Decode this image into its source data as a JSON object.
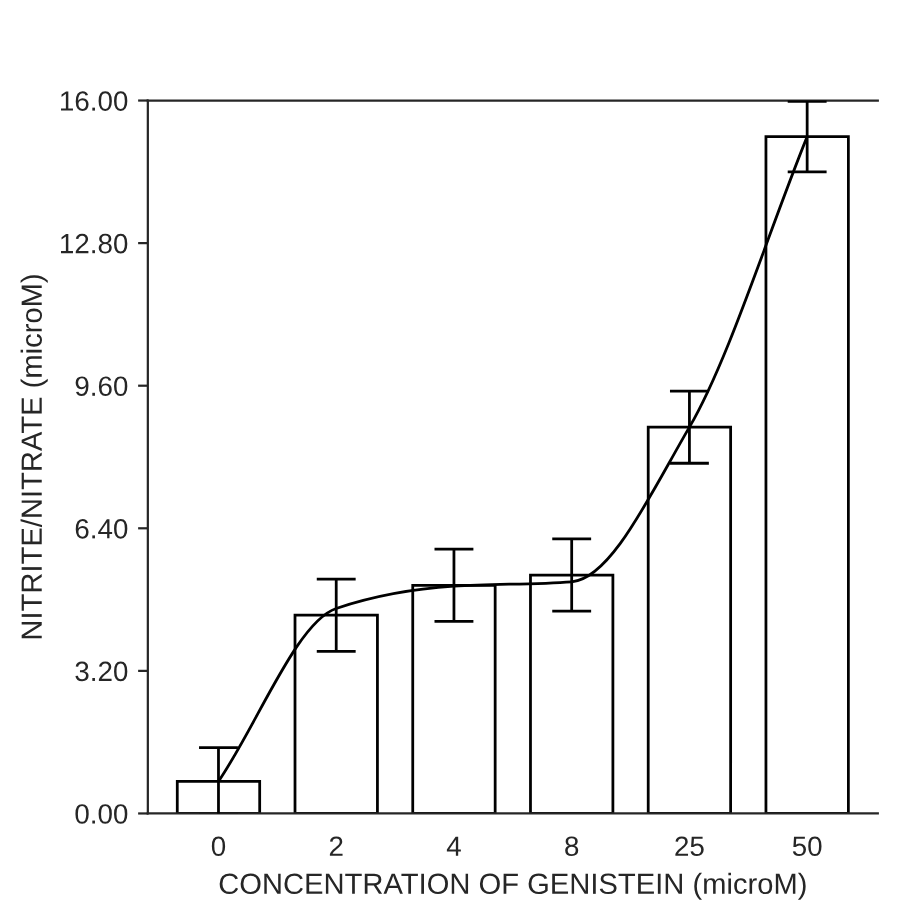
{
  "chart_data": {
    "type": "bar",
    "xlabel": "CONCENTRATION OF GENISTEIN (microM)",
    "ylabel": "NITRITE/NITRATE (microM)",
    "categories": [
      "0",
      "2",
      "4",
      "8",
      "25",
      "50"
    ],
    "series": [
      {
        "color": "#ffffff",
        "values": [
          0.72,
          4.45,
          5.12,
          5.35,
          8.67,
          15.19
        ],
        "errors": [
          0.76,
          0.81,
          0.81,
          0.81,
          0.81,
          0.79
        ]
      },
      {
        "type": "line",
        "color": "#000000",
        "values": [
          0.72,
          4.6,
          5.1,
          5.2,
          8.67,
          15.19
        ]
      }
    ],
    "ylim": [
      0,
      16
    ],
    "yticks": [
      {
        "value": 0,
        "label": "0.00"
      },
      {
        "value": 3.2,
        "label": "3.20"
      },
      {
        "value": 6.4,
        "label": "6.40"
      },
      {
        "value": 9.6,
        "label": "9.60"
      },
      {
        "value": 12.8,
        "label": "12.80"
      },
      {
        "value": 16,
        "label": "16.00"
      }
    ],
    "grid": false,
    "legend": false
  }
}
